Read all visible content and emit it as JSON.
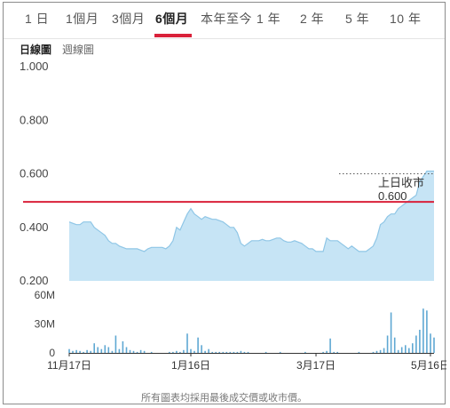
{
  "tabs": [
    {
      "label": "1 日",
      "active": false
    },
    {
      "label": "1個月",
      "active": false
    },
    {
      "label": "3個月",
      "active": false
    },
    {
      "label": "6個月",
      "active": true
    },
    {
      "label": "本年至今",
      "active": false
    },
    {
      "label": "1 年",
      "active": false
    },
    {
      "label": "2 年",
      "active": false
    },
    {
      "label": "5 年",
      "active": false
    },
    {
      "label": "10 年",
      "active": false
    }
  ],
  "subtabs": [
    {
      "label": "日線圖",
      "active": true
    },
    {
      "label": "週線圖",
      "active": false
    }
  ],
  "colors": {
    "accent": "#d9213a",
    "area_fill": "#c6e4f5",
    "area_line": "#8fc6e6",
    "volume_bar": "#5fa8d3"
  },
  "chart_data": {
    "type": "area",
    "price": {
      "ylim": [
        0.2,
        1.0
      ],
      "y_ticks": [
        "1.000",
        "0.800",
        "0.600",
        "0.400",
        "0.200"
      ],
      "y_tick_values": [
        1.0,
        0.8,
        0.6,
        0.4,
        0.2
      ],
      "values": [
        0.42,
        0.415,
        0.41,
        0.41,
        0.42,
        0.42,
        0.42,
        0.4,
        0.39,
        0.38,
        0.37,
        0.35,
        0.34,
        0.34,
        0.33,
        0.325,
        0.32,
        0.32,
        0.32,
        0.32,
        0.315,
        0.31,
        0.32,
        0.325,
        0.325,
        0.325,
        0.325,
        0.32,
        0.33,
        0.35,
        0.4,
        0.39,
        0.42,
        0.45,
        0.47,
        0.45,
        0.44,
        0.43,
        0.44,
        0.435,
        0.43,
        0.43,
        0.425,
        0.42,
        0.41,
        0.4,
        0.4,
        0.38,
        0.34,
        0.33,
        0.34,
        0.35,
        0.35,
        0.35,
        0.355,
        0.35,
        0.35,
        0.355,
        0.36,
        0.36,
        0.35,
        0.345,
        0.345,
        0.35,
        0.345,
        0.34,
        0.33,
        0.32,
        0.32,
        0.31,
        0.31,
        0.31,
        0.36,
        0.35,
        0.35,
        0.35,
        0.34,
        0.33,
        0.32,
        0.33,
        0.32,
        0.31,
        0.31,
        0.31,
        0.32,
        0.33,
        0.36,
        0.41,
        0.42,
        0.44,
        0.45,
        0.45,
        0.47,
        0.48,
        0.49,
        0.5,
        0.51,
        0.52,
        0.57,
        0.59,
        0.61,
        0.61,
        0.61
      ]
    },
    "reference": {
      "label_line1": "上日收市",
      "label_line2": "0.600",
      "value": 0.6
    },
    "current_line_value": 0.495,
    "volume": {
      "ylim": [
        0,
        60
      ],
      "y_ticks": [
        "60M",
        "30M",
        "0"
      ],
      "y_tick_values": [
        60,
        30,
        0
      ],
      "values": [
        4,
        2,
        3,
        2,
        1,
        3,
        2,
        10,
        6,
        4,
        8,
        6,
        2,
        18,
        4,
        12,
        6,
        3,
        2,
        1,
        3,
        2,
        0,
        1,
        0,
        0,
        0,
        0,
        1,
        1,
        2,
        1,
        3,
        20,
        4,
        2,
        16,
        8,
        2,
        4,
        1,
        1,
        1,
        1,
        1,
        1,
        1,
        1,
        2,
        1,
        1,
        0,
        0,
        0,
        0,
        1,
        0,
        0,
        0,
        1,
        0,
        0,
        0,
        0,
        0,
        0,
        1,
        0,
        0,
        0,
        0,
        1,
        2,
        15,
        1,
        1,
        0,
        0,
        0,
        0,
        0,
        1,
        0,
        0,
        0,
        1,
        2,
        3,
        5,
        18,
        42,
        16,
        3,
        6,
        8,
        5,
        10,
        18,
        24,
        46,
        44,
        20,
        16
      ]
    },
    "x_labels": [
      "11月17日",
      "1月16日",
      "3月17日",
      "5月16日"
    ],
    "x_label_indices": [
      0,
      34,
      69,
      101
    ]
  },
  "footnote": "所有圖表均採用最後成交價或收市價。"
}
